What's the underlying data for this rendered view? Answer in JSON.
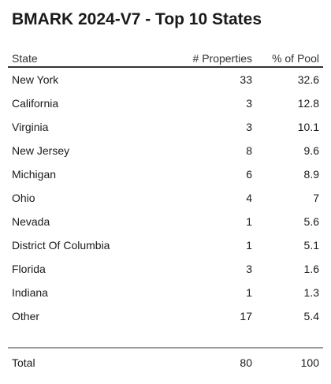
{
  "title": "BMARK 2024-V7 - Top 10 States",
  "columns": {
    "state": "State",
    "properties": "# Properties",
    "pool": "% of Pool"
  },
  "rows": [
    {
      "state": "New York",
      "properties": "33",
      "pool": "32.6"
    },
    {
      "state": "California",
      "properties": "3",
      "pool": "12.8"
    },
    {
      "state": "Virginia",
      "properties": "3",
      "pool": "10.1"
    },
    {
      "state": "New Jersey",
      "properties": "8",
      "pool": "9.6"
    },
    {
      "state": "Michigan",
      "properties": "6",
      "pool": "8.9"
    },
    {
      "state": "Ohio",
      "properties": "4",
      "pool": "7"
    },
    {
      "state": "Nevada",
      "properties": "1",
      "pool": "5.6"
    },
    {
      "state": "District Of Columbia",
      "properties": "1",
      "pool": "5.1"
    },
    {
      "state": "Florida",
      "properties": "3",
      "pool": "1.6"
    },
    {
      "state": "Indiana",
      "properties": "1",
      "pool": "1.3"
    },
    {
      "state": "Other",
      "properties": "17",
      "pool": "5.4"
    }
  ],
  "total": {
    "label": "Total",
    "properties": "80",
    "pool": "100"
  }
}
